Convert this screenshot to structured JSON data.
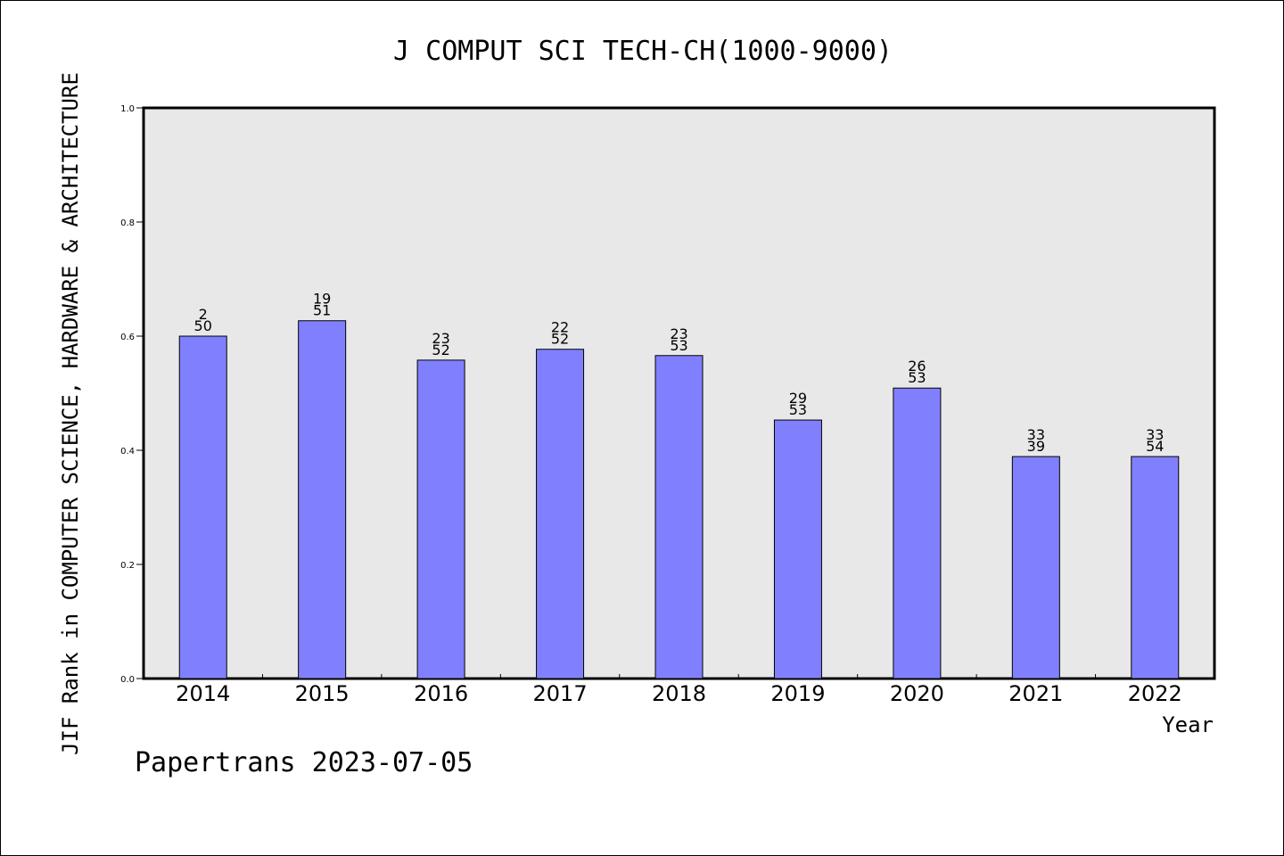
{
  "chart_data": {
    "type": "bar",
    "title": "J COMPUT SCI TECH-CH(1000-9000)",
    "xlabel": "Year",
    "ylabel": "JIF Rank in COMPUTER SCIENCE, HARDWARE & ARCHITECTURE",
    "ylim": [
      0,
      1.0
    ],
    "yticks": [
      "0.0",
      "0.2",
      "0.4",
      "0.6",
      "0.8",
      "1.0"
    ],
    "ytick_values": [
      0,
      0.2,
      0.4,
      0.6,
      0.8,
      1.0
    ],
    "grid": false,
    "categories": [
      "2014",
      "2015",
      "2016",
      "2017",
      "2018",
      "2019",
      "2020",
      "2021",
      "2022"
    ],
    "values": [
      0.6,
      0.627,
      0.558,
      0.577,
      0.566,
      0.453,
      0.509,
      0.389,
      0.389
    ],
    "rank": [
      "2",
      "19",
      "23",
      "22",
      "23",
      "29",
      "26",
      "33",
      "33"
    ],
    "total": [
      "50",
      "51",
      "52",
      "52",
      "53",
      "53",
      "53",
      "39",
      "54"
    ],
    "bar_color": "#8080ff",
    "plot_background": "#e8e8e8"
  },
  "footer": {
    "text": "Papertrans 2023-07-05"
  }
}
